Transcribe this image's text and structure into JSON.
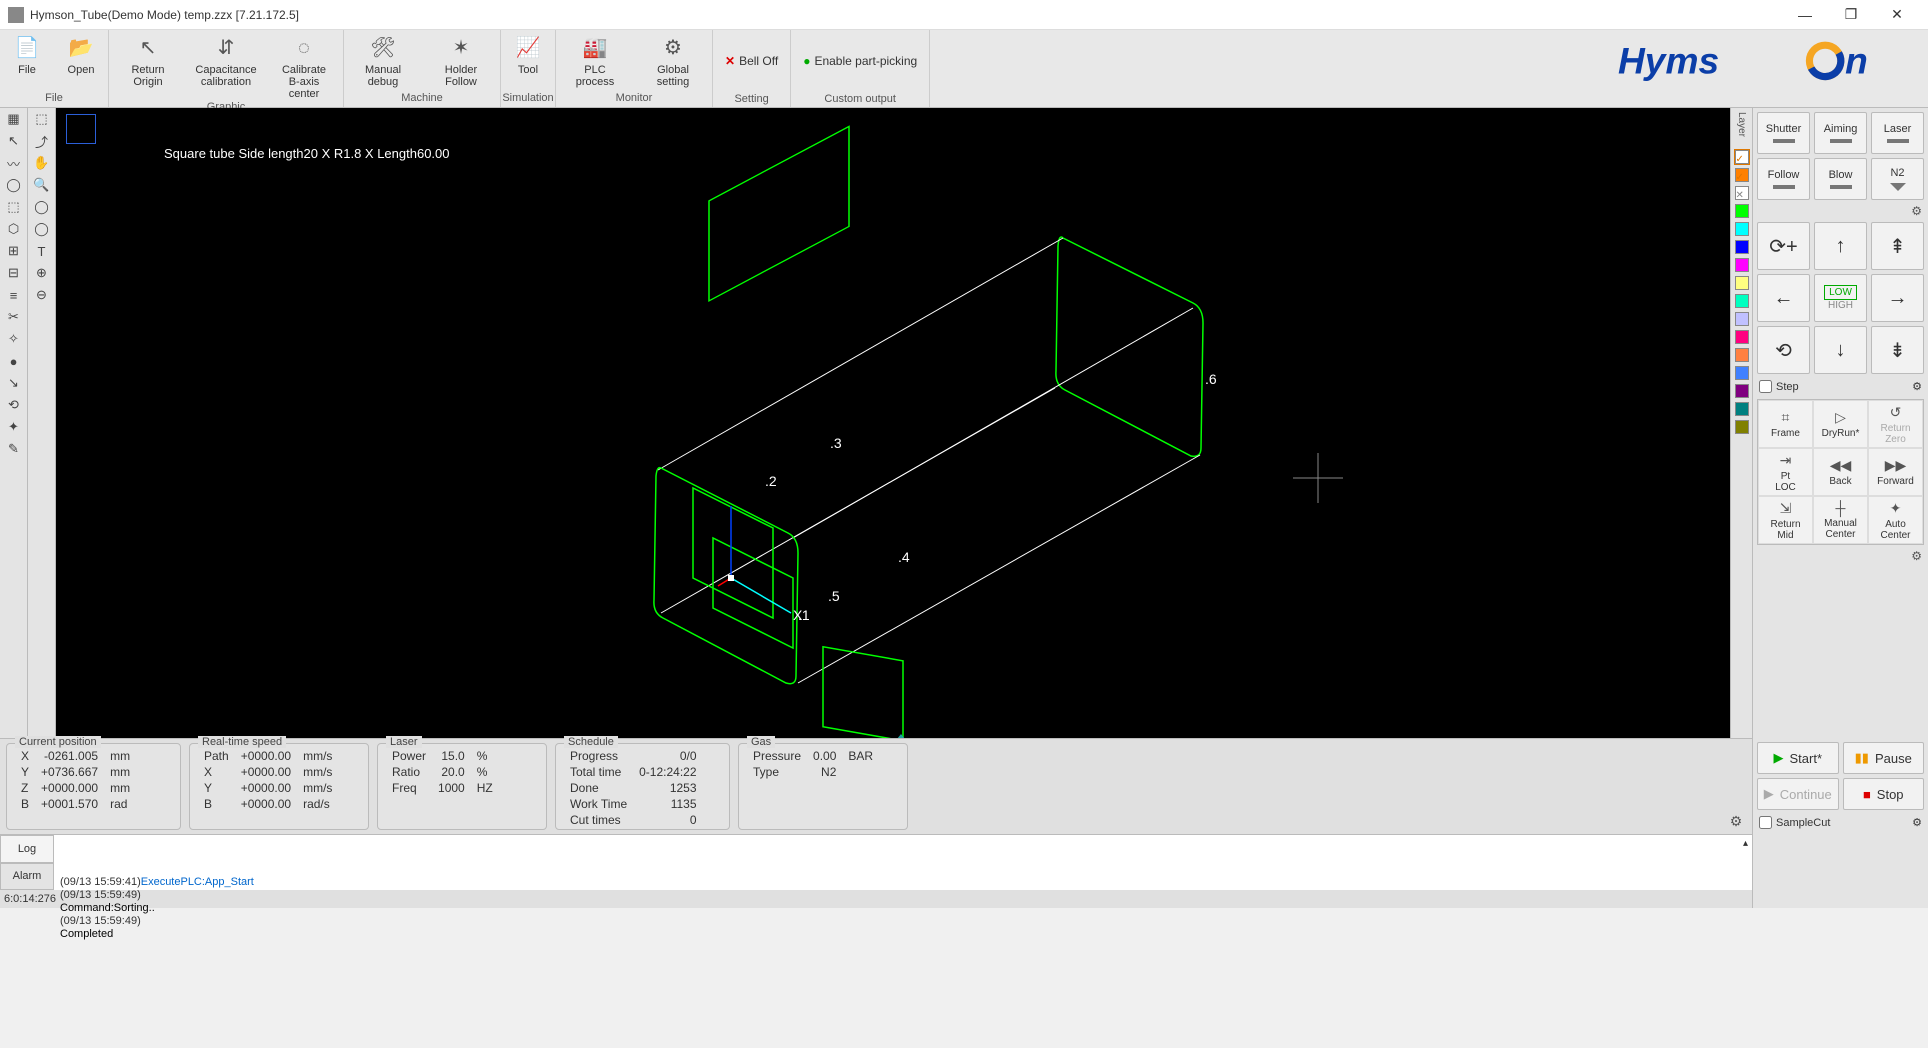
{
  "title": "Hymson_Tube(Demo Mode) temp.zzx  [7.21.172.5]",
  "ribbon": {
    "groups": [
      {
        "label": "File",
        "buttons": [
          {
            "icon": "📄",
            "label": "File"
          },
          {
            "icon": "📂",
            "label": "Open"
          }
        ]
      },
      {
        "label": "Graphic",
        "buttons": [
          {
            "icon": "↖",
            "label": "Return Origin",
            "wider": true
          },
          {
            "icon": "⇵",
            "label": "Capacitance calibration",
            "wider": true
          },
          {
            "icon": "◌",
            "label": "Calibrate B-axis center",
            "wider": true
          }
        ]
      },
      {
        "label": "Machine",
        "buttons": [
          {
            "icon": "🛠",
            "label": "Manual debug",
            "wider": true
          },
          {
            "icon": "✶",
            "label": "Holder Follow",
            "wider": true
          }
        ]
      },
      {
        "label": "Simulation",
        "buttons": [
          {
            "icon": "📈",
            "label": "Tool"
          }
        ]
      },
      {
        "label": "Monitor",
        "buttons": [
          {
            "icon": "🏭",
            "label": "PLC process",
            "wider": true
          },
          {
            "icon": "⚙",
            "label": "Global setting",
            "wider": true
          }
        ]
      },
      {
        "label": "Setting",
        "inline": [
          {
            "color": "#d00",
            "mark": "✕",
            "text": "Bell Off"
          }
        ]
      },
      {
        "label": "Custom output",
        "inline": [
          {
            "color": "#0a0",
            "mark": "●",
            "text": "Enable part-picking"
          }
        ]
      }
    ]
  },
  "viewport": {
    "label": "Square tube Side length20 X R1.8 X Length60.00",
    "points": [
      "1",
      "2",
      "3",
      "4",
      "5",
      "6"
    ],
    "tube_color": "#ffffff",
    "cut_color": "#00ff00",
    "axis_x": "#00ffff",
    "axis_y": "#0040ff",
    "axis_z": "#ff0000"
  },
  "layers": {
    "header": "Layer",
    "swatches": [
      "#ffffff",
      "#ff8000",
      "#ffffff",
      "#00ff00",
      "#00ffff",
      "#0000ff",
      "#ff00ff",
      "#ffff80",
      "#00ffc0",
      "#c0c0ff",
      "#ff0080",
      "#ff8040",
      "#4080ff",
      "#800080",
      "#008080",
      "#808000"
    ]
  },
  "right": {
    "top": [
      {
        "label": "Shutter",
        "style": "bar"
      },
      {
        "label": "Aiming",
        "style": "bar"
      },
      {
        "label": "Laser",
        "style": "bar"
      }
    ],
    "top2": [
      {
        "label": "Follow",
        "style": "bar"
      },
      {
        "label": "Blow",
        "style": "bar"
      },
      {
        "label": "N2",
        "style": "tri"
      }
    ],
    "jog_center_top": "LOW",
    "jog_center_bot": "HIGH",
    "step_label": "Step",
    "actions": [
      [
        "⌗",
        "Frame"
      ],
      [
        "▷",
        "DryRun*"
      ],
      [
        "↺",
        "Return Zero"
      ],
      [
        "⇥",
        "Pt LOC"
      ],
      [
        "◀◀",
        "Back"
      ],
      [
        "▶▶",
        "Forward"
      ],
      [
        "⇲",
        "Return Mid"
      ],
      [
        "┼",
        "Manual Center"
      ],
      [
        "✦",
        "Auto Center"
      ]
    ],
    "run": {
      "start": "Start*",
      "pause": "Pause",
      "continue": "Continue",
      "stop": "Stop",
      "sample": "SampleCut"
    }
  },
  "status": {
    "pos": {
      "title": "Current position",
      "rows": [
        [
          "X",
          "-0261.005",
          "mm"
        ],
        [
          "Y",
          "+0736.667",
          "mm"
        ],
        [
          "Z",
          "+0000.000",
          "mm"
        ],
        [
          "B",
          "+0001.570",
          "rad"
        ]
      ]
    },
    "speed": {
      "title": "Real-time speed",
      "rows": [
        [
          "Path",
          "+0000.00",
          "mm/s"
        ],
        [
          "X",
          "+0000.00",
          "mm/s"
        ],
        [
          "Y",
          "+0000.00",
          "mm/s"
        ],
        [
          "B",
          "+0000.00",
          "rad/s"
        ]
      ]
    },
    "laser": {
      "title": "Laser",
      "rows": [
        [
          "Power",
          "15.0",
          "%"
        ],
        [
          "Ratio",
          "20.0",
          "%"
        ],
        [
          "Freq",
          "1000",
          "HZ"
        ]
      ]
    },
    "schedule": {
      "title": "Schedule",
      "rows": [
        [
          "Progress",
          "0/0"
        ],
        [
          "Total time",
          "0-12:24:22"
        ],
        [
          "Done",
          "1253"
        ],
        [
          "Work Time",
          "1135"
        ],
        [
          "Cut times",
          "0"
        ]
      ]
    },
    "gas": {
      "title": "Gas",
      "rows": [
        [
          "Pressure",
          "0.00",
          "BAR"
        ],
        [
          "Type",
          "N2",
          ""
        ]
      ]
    }
  },
  "log": {
    "tabs": [
      "Log",
      "Alarm"
    ],
    "lines": [
      {
        "ts": "(09/13 15:59:41)",
        "msg": "ExecutePLC:App_Start",
        "color": "#0066cc"
      },
      {
        "ts": "(09/13 15:59:49)",
        "msg": "",
        "color": "#000"
      },
      {
        "ts": "",
        "msg": "Command:Sorting..",
        "color": "#000"
      },
      {
        "ts": "(09/13 15:59:49)",
        "msg": "",
        "color": "#000"
      },
      {
        "ts": "",
        "msg": "Completed",
        "color": "#000"
      }
    ]
  },
  "footer": "6:0:14:276",
  "ltool_icons": [
    "▦",
    "↖",
    "〰",
    "◯",
    "⬚",
    "⬡",
    "⊞",
    "⊟",
    "≡",
    "✂",
    "✧",
    "●",
    "↘",
    "⟲",
    "✦",
    "✎"
  ],
  "ltool2_icons": [
    "⬚",
    "⤴",
    "✋",
    "🔍",
    "◯",
    "◯",
    "T",
    "⊕",
    "⊖"
  ]
}
